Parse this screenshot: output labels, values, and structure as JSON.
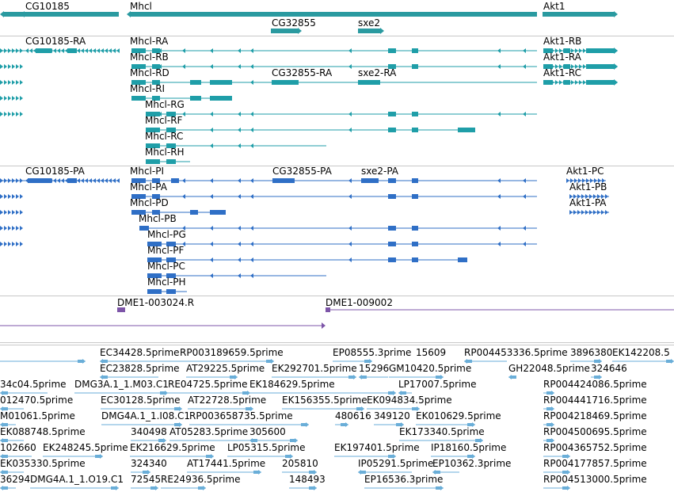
{
  "colors": {
    "gene": "#2a9aa0",
    "transcript_top": "#1f9ea8",
    "transcript_bottom": "#2f6fc6",
    "repeat": "#7d55a8",
    "est": "#6aaed8",
    "separator": "#c8c8c8"
  },
  "genes": [
    "CG10185",
    "Mhcl",
    "Akt1",
    "CG32855",
    "sxe2"
  ],
  "transcripts_top": [
    "CG10185-RA",
    "Mhcl-RA",
    "Akt1-RB",
    "Mhcl-RB",
    "Akt1-RA",
    "Mhcl-RD",
    "CG32855-RA",
    "sxe2-RA",
    "Akt1-RC",
    "Mhcl-RI",
    "Mhcl-RG",
    "Mhcl-RF",
    "Mhcl-RC",
    "Mhcl-RH"
  ],
  "transcripts_bottom": [
    "CG10185-PA",
    "Mhcl-PI",
    "CG32855-PA",
    "sxe2-PA",
    "Akt1-PC",
    "Mhcl-PA",
    "Akt1-PB",
    "Mhcl-PD",
    "Akt1-PA",
    "Mhcl-PB",
    "Mhcl-PG",
    "Mhcl-PF",
    "Mhcl-PC",
    "Mhcl-PH"
  ],
  "repeats": [
    "DME1-003024.R",
    "DME1-009002"
  ],
  "est": {
    "row1": [
      "EC34428.5prime",
      "RP003189659.5prime",
      "EP08555.3prime",
      "15609",
      "RP004453336.5prime",
      "3896380",
      "EK142208.5"
    ],
    "row2": [
      "EC23828.5prime",
      "AT29225.5prime",
      "EK292701.5prime",
      "15296",
      "GM10420.5prime",
      "GH22048.5prime",
      "324646"
    ],
    "row3": [
      "34c04.5prime",
      "DMG3A.1_1.M03.C1",
      "RE04725.5prime",
      "EK184629.5prime",
      "LP17007.5prime",
      "RP004424086.5prime"
    ],
    "row4": [
      "012470.5prime",
      "EC30128.5prime",
      "AT22728.5prime",
      "EK156355.5prime",
      "EK094834.5prime",
      "RP004441716.5prime"
    ],
    "row5": [
      "M01061.5prime",
      "DMG4A.1_1.I08.C1",
      "RP003658735.5prime",
      "480616",
      "349120",
      "EK010629.5prime",
      "RP004218469.5prime"
    ],
    "row6": [
      "EK088748.5prime",
      "340498",
      "AT05283.5prime",
      "305600",
      "EK173340.5prime",
      "RP004500695.5prime"
    ],
    "row7": [
      "102660",
      "EK248245.5prime",
      "EK216629.5prime",
      "LP05315.5prime",
      "EK197401.5prime",
      "IP18160.5prime",
      "RP004365752.5prime"
    ],
    "row8": [
      "EK035330.5prime",
      "324340",
      "AT17441.5prime",
      "205810",
      "IP05291.5prime",
      "EP10362.3prime",
      "RP004177857.5prime"
    ],
    "row9": [
      "36294",
      "DMG4A.1_1.O19.C1",
      "72545",
      "RE24936.5prime",
      "148493",
      "EP16536.3prime",
      "RP004513000.5prime"
    ]
  }
}
